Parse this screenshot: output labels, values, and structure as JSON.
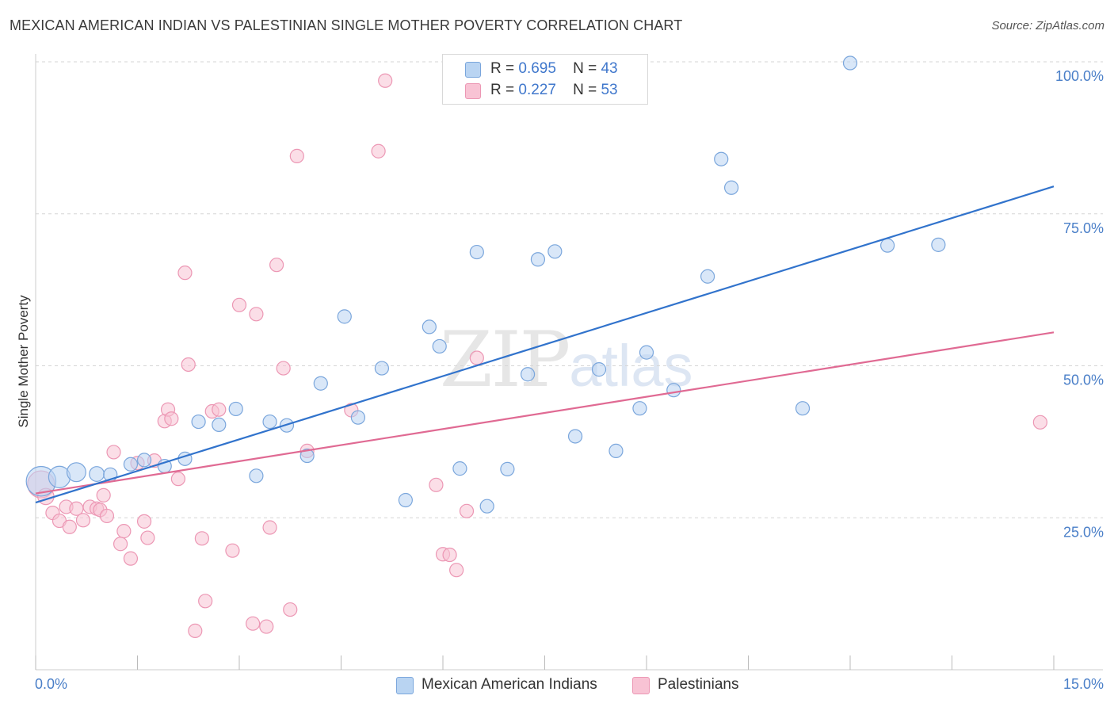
{
  "title": "MEXICAN AMERICAN INDIAN VS PALESTINIAN SINGLE MOTHER POVERTY CORRELATION CHART",
  "source": "Source: ZipAtlas.com",
  "watermark": {
    "zip": "ZIP",
    "atlas": "atlas"
  },
  "legend_top": [
    {
      "r_label": "R =",
      "r_value": "0.695",
      "n_label": "N =",
      "n_value": "43"
    },
    {
      "r_label": "R =",
      "r_value": "0.227",
      "n_label": "N =",
      "n_value": "53"
    }
  ],
  "legend_bottom": [
    "Mexican American Indians",
    "Palestinians"
  ],
  "colors": {
    "blue_fill": "#b9d4f2",
    "blue_stroke": "#7aa6dc",
    "blue_line": "#3173cc",
    "pink_fill": "#f8c3d4",
    "pink_stroke": "#ec97b4",
    "pink_line": "#e06a93",
    "grid": "#d6d6d6",
    "axis_label": "#4a7fc8"
  },
  "chart_data": {
    "type": "scatter",
    "title": "MEXICAN AMERICAN INDIAN VS PALESTINIAN SINGLE MOTHER POVERTY CORRELATION CHART",
    "xlabel": "",
    "ylabel": "Single Mother Poverty",
    "xlim": [
      0,
      15
    ],
    "ylim": [
      0,
      100
    ],
    "x_tick_labels": [
      "0.0%",
      "15.0%"
    ],
    "y_tick_labels": [
      "25.0%",
      "50.0%",
      "75.0%",
      "100.0%"
    ],
    "y_ticks": [
      25,
      50,
      75,
      100
    ],
    "grid": true,
    "series": [
      {
        "name": "Mexican American Indians",
        "r": 0.695,
        "n": 43,
        "trend": {
          "x": [
            0,
            15
          ],
          "y": [
            27.5,
            79.5
          ]
        },
        "points": [
          [
            0.08,
            31.0,
            2.2
          ],
          [
            0.35,
            31.7,
            1.6
          ],
          [
            0.6,
            32.5,
            1.4
          ],
          [
            0.9,
            32.2,
            1.1
          ],
          [
            1.1,
            32.1,
            1.0
          ],
          [
            1.4,
            33.8,
            1.0
          ],
          [
            1.6,
            34.5,
            1.0
          ],
          [
            1.9,
            33.5,
            1.0
          ],
          [
            2.2,
            34.7,
            1.0
          ],
          [
            2.4,
            40.8,
            1.0
          ],
          [
            2.7,
            40.3,
            1.0
          ],
          [
            2.95,
            42.9,
            1.0
          ],
          [
            3.25,
            31.9,
            1.0
          ],
          [
            3.45,
            40.8,
            1.0
          ],
          [
            3.7,
            40.2,
            1.0
          ],
          [
            4.0,
            35.2,
            1.0
          ],
          [
            4.2,
            47.1,
            1.0
          ],
          [
            4.55,
            58.1,
            1.0
          ],
          [
            4.75,
            41.5,
            1.0
          ],
          [
            5.1,
            49.6,
            1.0
          ],
          [
            5.45,
            27.9,
            1.0
          ],
          [
            5.8,
            56.4,
            1.0
          ],
          [
            5.95,
            53.2,
            1.0
          ],
          [
            6.25,
            33.1,
            1.0
          ],
          [
            6.5,
            68.7,
            1.0
          ],
          [
            6.65,
            26.9,
            1.0
          ],
          [
            6.95,
            33.0,
            1.0
          ],
          [
            7.25,
            48.6,
            1.0
          ],
          [
            7.4,
            67.5,
            1.0
          ],
          [
            7.65,
            68.8,
            1.0
          ],
          [
            7.95,
            38.4,
            1.0
          ],
          [
            8.3,
            49.4,
            1.0
          ],
          [
            8.55,
            36.0,
            1.0
          ],
          [
            8.9,
            43.0,
            1.0
          ],
          [
            9.0,
            52.2,
            1.0
          ],
          [
            9.4,
            46.0,
            1.0
          ],
          [
            9.9,
            64.7,
            1.0
          ],
          [
            10.1,
            84.0,
            1.0
          ],
          [
            10.25,
            79.3,
            1.0
          ],
          [
            11.3,
            43.0,
            1.0
          ],
          [
            12.0,
            99.8,
            1.0
          ],
          [
            12.55,
            69.8,
            1.0
          ],
          [
            13.3,
            69.9,
            1.0
          ]
        ]
      },
      {
        "name": "Palestinians",
        "r": 0.227,
        "n": 53,
        "trend": {
          "x": [
            0,
            15
          ],
          "y": [
            29.0,
            55.5
          ]
        },
        "points": [
          [
            0.08,
            30.5,
            2.0
          ],
          [
            0.15,
            28.5,
            1.2
          ],
          [
            0.25,
            25.8,
            1.0
          ],
          [
            0.35,
            24.5,
            1.0
          ],
          [
            0.45,
            26.8,
            1.0
          ],
          [
            0.5,
            23.5,
            1.0
          ],
          [
            0.6,
            26.5,
            1.0
          ],
          [
            0.7,
            24.6,
            1.0
          ],
          [
            0.8,
            26.8,
            1.0
          ],
          [
            0.9,
            26.5,
            1.0
          ],
          [
            0.95,
            26.3,
            1.0
          ],
          [
            1.0,
            28.7,
            1.0
          ],
          [
            1.05,
            25.3,
            1.0
          ],
          [
            1.15,
            35.8,
            1.0
          ],
          [
            1.25,
            20.7,
            1.0
          ],
          [
            1.3,
            22.8,
            1.0
          ],
          [
            1.4,
            18.3,
            1.0
          ],
          [
            1.5,
            34.0,
            1.0
          ],
          [
            1.6,
            24.4,
            1.0
          ],
          [
            1.65,
            21.7,
            1.0
          ],
          [
            1.75,
            34.4,
            1.0
          ],
          [
            1.9,
            40.9,
            1.0
          ],
          [
            1.95,
            42.8,
            1.0
          ],
          [
            2.0,
            41.3,
            1.0
          ],
          [
            2.1,
            31.4,
            1.0
          ],
          [
            2.2,
            65.3,
            1.0
          ],
          [
            2.25,
            50.2,
            1.0
          ],
          [
            2.35,
            6.4,
            1.0
          ],
          [
            2.45,
            21.6,
            1.0
          ],
          [
            2.5,
            11.3,
            1.0
          ],
          [
            2.6,
            42.5,
            1.0
          ],
          [
            2.7,
            42.8,
            1.0
          ],
          [
            2.9,
            19.6,
            1.0
          ],
          [
            3.0,
            60.0,
            1.0
          ],
          [
            3.2,
            7.6,
            1.0
          ],
          [
            3.25,
            58.5,
            1.0
          ],
          [
            3.4,
            7.1,
            1.0
          ],
          [
            3.45,
            23.4,
            1.0
          ],
          [
            3.55,
            66.6,
            1.0
          ],
          [
            3.65,
            49.6,
            1.0
          ],
          [
            3.75,
            9.9,
            1.0
          ],
          [
            3.85,
            84.5,
            1.0
          ],
          [
            4.0,
            36.0,
            1.0
          ],
          [
            4.65,
            42.7,
            1.0
          ],
          [
            5.05,
            85.3,
            1.0
          ],
          [
            5.15,
            96.9,
            1.0
          ],
          [
            5.9,
            30.4,
            1.0
          ],
          [
            6.0,
            19.0,
            1.0
          ],
          [
            6.1,
            18.9,
            1.0
          ],
          [
            6.2,
            16.4,
            1.0
          ],
          [
            6.35,
            26.1,
            1.0
          ],
          [
            6.5,
            51.3,
            1.0
          ],
          [
            14.8,
            40.7,
            1.0
          ]
        ]
      }
    ]
  }
}
